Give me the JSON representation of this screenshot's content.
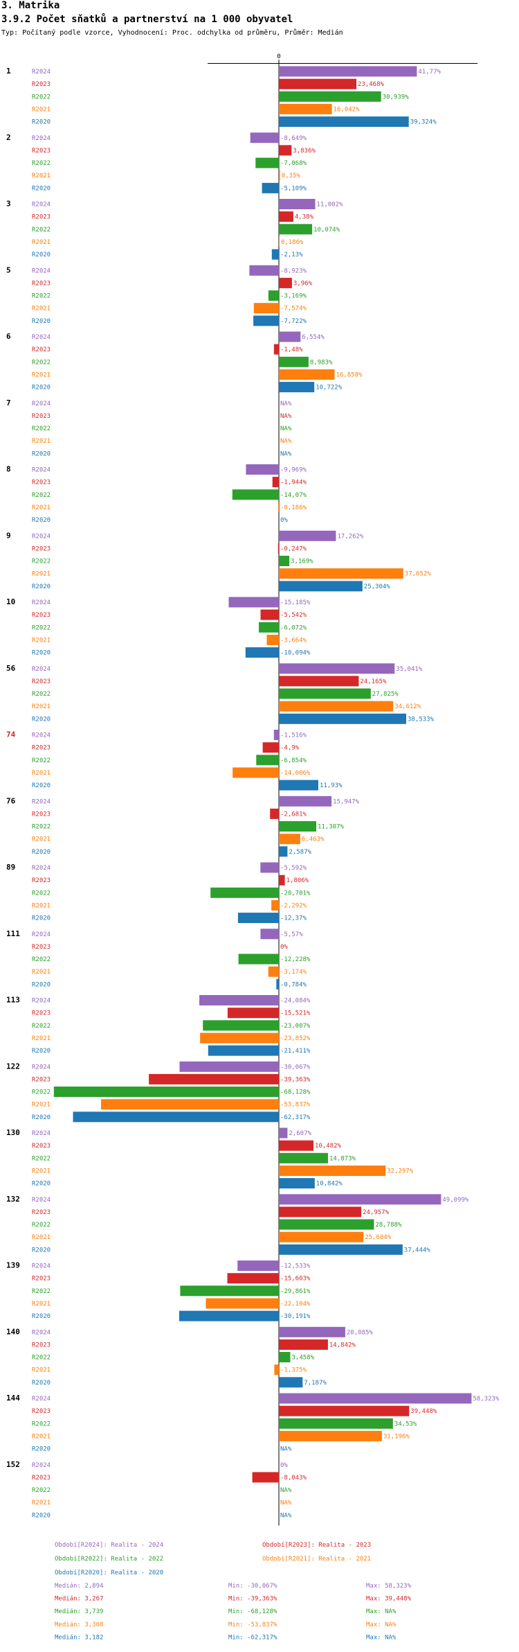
{
  "header": {
    "section": "3. Matrika",
    "title": "3.9.2 Počet sňatků a partnerství na 1 000 obyvatel",
    "subtitle": "Typ: Počítaný podle vzorce, Vyhodnocení: Proc. odchylka od průměru, Průměr: Medián"
  },
  "chart_data": {
    "type": "bar",
    "orientation": "horizontal",
    "zero_label": "0",
    "value_suffix": "%",
    "series": [
      {
        "key": "R2024",
        "name": "R2024",
        "color": "#9467bd"
      },
      {
        "key": "R2023",
        "name": "R2023",
        "color": "#d62728"
      },
      {
        "key": "R2022",
        "name": "R2022",
        "color": "#2ca02c"
      },
      {
        "key": "R2021",
        "name": "R2021",
        "color": "#ff7f0e"
      },
      {
        "key": "R2020",
        "name": "R2020",
        "color": "#1f77b4"
      }
    ],
    "groups": [
      {
        "label": "1",
        "highlight": false,
        "values": [
          41.77,
          23.468,
          30.939,
          16.042,
          39.324
        ],
        "labels": [
          "41,77",
          "23,468",
          "30,939",
          "16,042",
          "39,324"
        ]
      },
      {
        "label": "2",
        "highlight": false,
        "values": [
          -8.649,
          3.836,
          -7.068,
          0.35,
          -5.109
        ],
        "labels": [
          "-8,649",
          "3,836",
          "-7,068",
          "0,35",
          "-5,109"
        ]
      },
      {
        "label": "3",
        "highlight": false,
        "values": [
          11.002,
          4.38,
          10.074,
          0.186,
          -2.13
        ],
        "labels": [
          "11,002",
          "4,38",
          "10,074",
          "0,186",
          "-2,13"
        ]
      },
      {
        "label": "5",
        "highlight": false,
        "values": [
          -8.923,
          3.96,
          -3.169,
          -7.574,
          -7.722
        ],
        "labels": [
          "-8,923",
          "3,96",
          "-3,169",
          "-7,574",
          "-7,722"
        ]
      },
      {
        "label": "6",
        "highlight": false,
        "values": [
          6.554,
          -1.48,
          8.983,
          16.858,
          10.722
        ],
        "labels": [
          "6,554",
          "-1,48",
          "8,983",
          "16,858",
          "10,722"
        ]
      },
      {
        "label": "7",
        "highlight": false,
        "values": [
          null,
          null,
          null,
          null,
          null
        ],
        "labels": [
          "NA",
          "NA",
          "NA",
          "NA",
          "NA"
        ]
      },
      {
        "label": "8",
        "highlight": false,
        "values": [
          -9.969,
          -1.944,
          -14.07,
          -0.186,
          0
        ],
        "labels": [
          "-9,969",
          "-1,944",
          "-14,07",
          "-0,186",
          "0"
        ]
      },
      {
        "label": "9",
        "highlight": false,
        "values": [
          17.262,
          -0.247,
          3.169,
          37.652,
          25.304
        ],
        "labels": [
          "17,262",
          "-0,247",
          "3,169",
          "37,652",
          "25,304"
        ]
      },
      {
        "label": "10",
        "highlight": false,
        "values": [
          -15.185,
          -5.542,
          -6.072,
          -3.664,
          -10.094
        ],
        "labels": [
          "-15,185",
          "-5,542",
          "-6,072",
          "-3,664",
          "-10,094"
        ]
      },
      {
        "label": "56",
        "highlight": false,
        "values": [
          35.041,
          24.165,
          27.825,
          34.612,
          38.533
        ],
        "labels": [
          "35,041",
          "24,165",
          "27,825",
          "34,612",
          "38,533"
        ]
      },
      {
        "label": "74",
        "highlight": true,
        "values": [
          -1.516,
          -4.9,
          -6.854,
          -14.006,
          11.93
        ],
        "labels": [
          "-1,516",
          "-4,9",
          "-6,854",
          "-14,006",
          "11,93"
        ]
      },
      {
        "label": "76",
        "highlight": false,
        "values": [
          15.947,
          -2.681,
          11.307,
          6.463,
          2.587
        ],
        "labels": [
          "15,947",
          "-2,681",
          "11,307",
          "6,463",
          "2,587"
        ]
      },
      {
        "label": "89",
        "highlight": false,
        "values": [
          -5.592,
          1.806,
          -20.701,
          -2.292,
          -12.37
        ],
        "labels": [
          "-5,592",
          "1,806",
          "-20,701",
          "-2,292",
          "-12,37"
        ]
      },
      {
        "label": "111",
        "highlight": false,
        "values": [
          -5.57,
          0,
          -12.228,
          -3.174,
          -0.784
        ],
        "labels": [
          "-5,57",
          "0",
          "-12,228",
          "-3,174",
          "-0,784"
        ]
      },
      {
        "label": "113",
        "highlight": false,
        "values": [
          -24.084,
          -15.521,
          -23.007,
          -23.852,
          -21.411
        ],
        "labels": [
          "-24,084",
          "-15,521",
          "-23,007",
          "-23,852",
          "-21,411"
        ]
      },
      {
        "label": "122",
        "highlight": false,
        "values": [
          -30.067,
          -39.363,
          -68.128,
          -53.837,
          -62.317
        ],
        "labels": [
          "-30,067",
          "-39,363",
          "-68,128",
          "-53,837",
          "-62,317"
        ]
      },
      {
        "label": "130",
        "highlight": false,
        "values": [
          2.607,
          10.482,
          14.873,
          32.297,
          10.842
        ],
        "labels": [
          "2,607",
          "10,482",
          "14,873",
          "32,297",
          "10,842"
        ]
      },
      {
        "label": "132",
        "highlight": false,
        "values": [
          49.099,
          24.957,
          28.788,
          25.604,
          37.444
        ],
        "labels": [
          "49,099",
          "24,957",
          "28,788",
          "25,604",
          "37,444"
        ]
      },
      {
        "label": "139",
        "highlight": false,
        "values": [
          -12.533,
          -15.603,
          -29.861,
          -22.104,
          -30.191
        ],
        "labels": [
          "-12,533",
          "-15,603",
          "-29,861",
          "-22,104",
          "-30,191"
        ]
      },
      {
        "label": "140",
        "highlight": false,
        "values": [
          20.085,
          14.842,
          3.458,
          -1.375,
          7.187
        ],
        "labels": [
          "20,085",
          "14,842",
          "3,458",
          "-1,375",
          "7,187"
        ]
      },
      {
        "label": "144",
        "highlight": false,
        "values": [
          58.323,
          39.448,
          34.53,
          31.196,
          null
        ],
        "labels": [
          "58,323",
          "39,448",
          "34,53",
          "31,196",
          "NA"
        ]
      },
      {
        "label": "152",
        "highlight": false,
        "values": [
          0,
          -8.043,
          null,
          null,
          null
        ],
        "labels": [
          "0",
          "-8,043",
          "NA",
          "NA",
          "NA"
        ]
      }
    ],
    "legend": [
      {
        "text": "Období[R2024]: Realita - 2024",
        "color": "#9467bd"
      },
      {
        "text": "Období[R2023]: Realita - 2023",
        "color": "#d62728"
      },
      {
        "text": "Období[R2022]: Realita - 2022",
        "color": "#2ca02c"
      },
      {
        "text": "Období[R2021]: Realita - 2021",
        "color": "#ff7f0e"
      },
      {
        "text": "Období[R2020]: Realita - 2020",
        "color": "#1f77b4"
      }
    ],
    "stats": [
      {
        "color": "#9467bd",
        "median": "Medián: 2,894",
        "min": "Min: -30,067%",
        "max": "Max: 58,323%"
      },
      {
        "color": "#d62728",
        "median": "Medián: 3,267",
        "min": "Min: -39,363%",
        "max": "Max: 39,448%"
      },
      {
        "color": "#2ca02c",
        "median": "Medián: 3,739",
        "min": "Min: -68,128%",
        "max": "Max: NA%"
      },
      {
        "color": "#ff7f0e",
        "median": "Medián: 3,368",
        "min": "Min: -53,837%",
        "max": "Max: NA%"
      },
      {
        "color": "#1f77b4",
        "median": "Medián: 3,182",
        "min": "Min: -62,317%",
        "max": "Max: NA%"
      }
    ]
  }
}
